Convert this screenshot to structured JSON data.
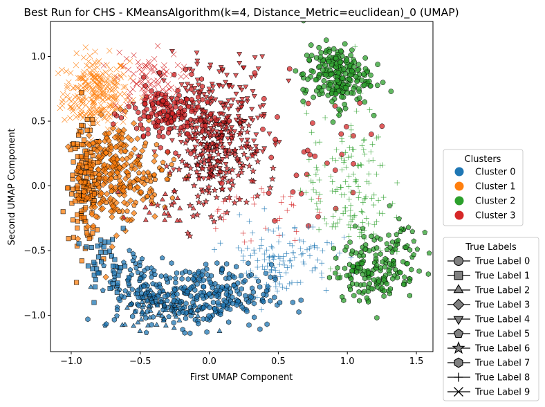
{
  "chart_data": {
    "type": "scatter",
    "title": "Best Run for CHS - KMeansAlgorithm(k=4, Distance_Metric=euclidean)_0 (UMAP)",
    "xlabel": "First UMAP Component",
    "ylabel": "Second UMAP Component",
    "xlim": [
      -1.15,
      1.62
    ],
    "ylim": [
      -1.28,
      1.27
    ],
    "xticks": [
      -1.0,
      -0.5,
      0.0,
      0.5,
      1.0,
      1.5
    ],
    "yticks": [
      -1.0,
      -0.5,
      0.0,
      0.5,
      1.0
    ],
    "xtick_labels": [
      "−1.0",
      "−0.5",
      "0.0",
      "0.5",
      "1.0",
      "1.5"
    ],
    "ytick_labels": [
      "−1.0",
      "−0.5",
      "0.0",
      "0.5",
      "1.0"
    ],
    "grid": false,
    "cluster_legend": {
      "title": "Clusters",
      "placement": "right",
      "entries": [
        {
          "label": "Cluster 0",
          "color": "#1f77b4"
        },
        {
          "label": "Cluster 1",
          "color": "#ff7f0e"
        },
        {
          "label": "Cluster 2",
          "color": "#2ca02c"
        },
        {
          "label": "Cluster 3",
          "color": "#d62728"
        }
      ]
    },
    "label_legend": {
      "title": "True Labels",
      "placement": "lower-right",
      "entries": [
        {
          "label": "True Label 0",
          "marker": "circle"
        },
        {
          "label": "True Label 1",
          "marker": "square"
        },
        {
          "label": "True Label 2",
          "marker": "triangle-up"
        },
        {
          "label": "True Label 3",
          "marker": "diamond"
        },
        {
          "label": "True Label 4",
          "marker": "triangle-down"
        },
        {
          "label": "True Label 5",
          "marker": "pentagon"
        },
        {
          "label": "True Label 6",
          "marker": "star"
        },
        {
          "label": "True Label 7",
          "marker": "hexagon"
        },
        {
          "label": "True Label 8",
          "marker": "plus"
        },
        {
          "label": "True Label 9",
          "marker": "x"
        }
      ]
    },
    "groups": [
      {
        "cluster": 1,
        "label": 9,
        "cx": -0.82,
        "cy": 0.72,
        "sx": 0.12,
        "sy": 0.14,
        "n": 260
      },
      {
        "cluster": 1,
        "label": 1,
        "cx": -0.9,
        "cy": 0.0,
        "sx": 0.06,
        "sy": 0.22,
        "n": 170
      },
      {
        "cluster": 1,
        "label": 3,
        "cx": -0.68,
        "cy": 0.1,
        "sx": 0.12,
        "sy": 0.2,
        "n": 230
      },
      {
        "cluster": 1,
        "label": 5,
        "cx": -0.45,
        "cy": 0.05,
        "sx": 0.12,
        "sy": 0.15,
        "n": 50
      },
      {
        "cluster": 3,
        "label": 9,
        "cx": -0.45,
        "cy": 0.8,
        "sx": 0.12,
        "sy": 0.12,
        "n": 90
      },
      {
        "cluster": 3,
        "label": 4,
        "cx": 0.05,
        "cy": 0.55,
        "sx": 0.2,
        "sy": 0.22,
        "n": 230
      },
      {
        "cluster": 3,
        "label": 6,
        "cx": 0.05,
        "cy": 0.2,
        "sx": 0.15,
        "sy": 0.2,
        "n": 190
      },
      {
        "cluster": 3,
        "label": 7,
        "cx": -0.3,
        "cy": 0.55,
        "sx": 0.15,
        "sy": 0.12,
        "n": 150
      },
      {
        "cluster": 3,
        "label": 0,
        "cx": 0.7,
        "cy": 0.25,
        "sx": 0.25,
        "sy": 0.25,
        "n": 35
      },
      {
        "cluster": 3,
        "label": 2,
        "cx": -0.3,
        "cy": -0.15,
        "sx": 0.12,
        "sy": 0.08,
        "n": 20
      },
      {
        "cluster": 0,
        "label": 7,
        "cx": -0.05,
        "cy": -0.85,
        "sx": 0.25,
        "sy": 0.12,
        "n": 280
      },
      {
        "cluster": 0,
        "label": 5,
        "cx": -0.5,
        "cy": -0.75,
        "sx": 0.15,
        "sy": 0.15,
        "n": 80
      },
      {
        "cluster": 0,
        "label": 2,
        "cx": -0.35,
        "cy": -0.95,
        "sx": 0.15,
        "sy": 0.08,
        "n": 70
      },
      {
        "cluster": 0,
        "label": 8,
        "cx": 0.5,
        "cy": -0.55,
        "sx": 0.2,
        "sy": 0.15,
        "n": 120
      },
      {
        "cluster": 0,
        "label": 1,
        "cx": -0.75,
        "cy": -0.6,
        "sx": 0.08,
        "sy": 0.1,
        "n": 40
      },
      {
        "cluster": 2,
        "label": 0,
        "cx": 0.92,
        "cy": 0.85,
        "sx": 0.12,
        "sy": 0.12,
        "n": 220
      },
      {
        "cluster": 2,
        "label": 8,
        "cx": 1.0,
        "cy": 0.0,
        "sx": 0.15,
        "sy": 0.3,
        "n": 150
      },
      {
        "cluster": 2,
        "label": 7,
        "cx": 1.2,
        "cy": -0.65,
        "sx": 0.15,
        "sy": 0.12,
        "n": 160
      },
      {
        "cluster": 2,
        "label": 5,
        "cx": 1.35,
        "cy": -0.4,
        "sx": 0.1,
        "sy": 0.1,
        "n": 30
      },
      {
        "cluster": 3,
        "label": 8,
        "cx": 0.3,
        "cy": -0.2,
        "sx": 0.2,
        "sy": 0.12,
        "n": 30
      }
    ]
  }
}
